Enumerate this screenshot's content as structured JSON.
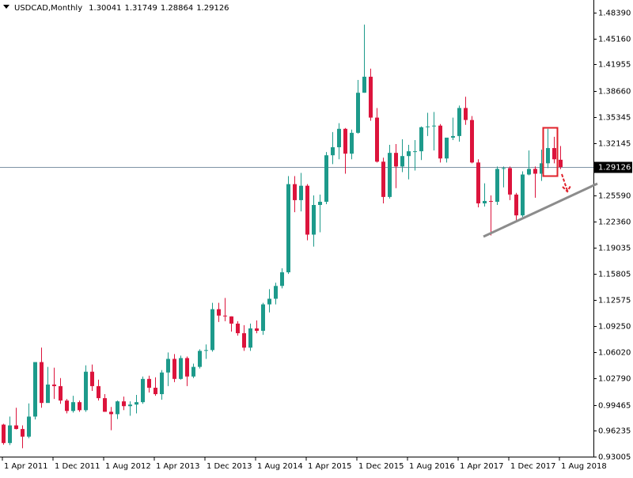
{
  "chart_data": {
    "type": "candlestick",
    "symbol": "USDCAD,Monthly",
    "header_ohlc": [
      1.30041,
      1.31749,
      1.28864,
      1.29126
    ],
    "current_price": 1.29126,
    "up_color": "#1d9a8b",
    "down_color": "#dc143c",
    "ylim": [
      0.93005,
      1.4997
    ],
    "yticks": [
      {
        "value": 1.4839,
        "label": "1.48390"
      },
      {
        "value": 1.4516,
        "label": "1.45160"
      },
      1.41955,
      {
        "value": 1.3866,
        "label": "1.38660"
      },
      1.35345,
      1.32145,
      {
        "value": 1.2559,
        "label": "1.25590"
      },
      {
        "value": 1.2236,
        "label": "1.22360"
      },
      1.19035,
      1.15805,
      1.12575,
      {
        "value": 1.0925,
        "label": "1.09250"
      },
      {
        "value": 1.0602,
        "label": "1.06020"
      },
      {
        "value": 1.0279,
        "label": "1.02790"
      },
      0.99465,
      0.96235,
      0.93005
    ],
    "categories": [
      "1 Apr 2011",
      null,
      null,
      null,
      null,
      null,
      null,
      null,
      "1 Dec 2011",
      null,
      null,
      null,
      null,
      null,
      null,
      null,
      "1 Aug 2012",
      null,
      null,
      null,
      null,
      null,
      null,
      null,
      "1 Apr 2013",
      null,
      null,
      null,
      null,
      null,
      null,
      null,
      "1 Dec 2013",
      null,
      null,
      null,
      null,
      null,
      null,
      null,
      "1 Aug 2014",
      null,
      null,
      null,
      null,
      null,
      null,
      null,
      "1 Apr 2015",
      null,
      null,
      null,
      null,
      null,
      null,
      null,
      "1 Dec 2015",
      null,
      null,
      null,
      null,
      null,
      null,
      null,
      "1 Aug 2016",
      null,
      null,
      null,
      null,
      null,
      null,
      null,
      "1 Apr 2017",
      null,
      null,
      null,
      null,
      null,
      null,
      null,
      "1 Dec 2017",
      null,
      null,
      null,
      null,
      null,
      null,
      null,
      "1 Aug 2018"
    ],
    "open": [
      0.97,
      0.947,
      0.969,
      0.9645,
      0.955,
      0.98,
      1.048,
      0.997,
      1.02,
      1.018,
      1.0,
      0.987,
      0.998,
      0.988,
      1.036,
      1.018,
      1.003,
      0.986,
      0.983,
      0.999,
      0.993,
      0.995,
      0.998,
      1.027,
      1.016,
      1.008,
      1.035,
      1.052,
      1.027,
      1.053,
      1.03,
      1.042,
      1.062,
      1.063,
      1.114,
      1.106,
      1.105,
      1.096,
      1.084,
      1.066,
      1.09,
      1.087,
      1.12,
      1.127,
      1.143,
      1.16,
      1.27,
      1.25,
      1.268,
      1.207,
      1.244,
      1.248,
      1.306,
      1.316,
      1.339,
      1.308,
      1.334,
      1.384,
      1.404,
      1.353,
      1.298,
      1.254,
      1.309,
      1.292,
      1.305,
      1.311,
      1.311,
      1.341,
      1.342,
      1.343,
      1.302,
      1.328,
      1.33,
      1.365,
      1.35,
      1.297,
      1.246,
      1.249,
      1.248,
      1.289,
      1.29,
      1.257,
      1.231,
      1.282,
      1.289,
      1.283,
      1.296,
      1.315,
      1.30041
    ],
    "high": [
      0.971,
      0.98,
      0.991,
      0.969,
      0.9965,
      1.048,
      1.066,
      1.042,
      1.041,
      1.028,
      1.002,
      1.006,
      1.0,
      1.044,
      1.045,
      1.026,
      1.008,
      0.992,
      1.0,
      1.005,
      0.999,
      1.007,
      1.03,
      1.031,
      1.029,
      1.038,
      1.06,
      1.058,
      1.056,
      1.055,
      1.046,
      1.064,
      1.07,
      1.122,
      1.122,
      1.128,
      1.105,
      1.099,
      1.094,
      1.096,
      1.1,
      1.122,
      1.139,
      1.147,
      1.165,
      1.28,
      1.28,
      1.284,
      1.27,
      1.256,
      1.257,
      1.31,
      1.335,
      1.346,
      1.34,
      1.338,
      1.4,
      1.469,
      1.414,
      1.365,
      1.303,
      1.319,
      1.32,
      1.326,
      1.319,
      1.325,
      1.342,
      1.359,
      1.36,
      1.345,
      1.323,
      1.353,
      1.368,
      1.379,
      1.355,
      1.301,
      1.271,
      1.256,
      1.292,
      1.292,
      1.292,
      1.259,
      1.286,
      1.312,
      1.292,
      1.313,
      1.339,
      1.329,
      1.31749
    ],
    "low": [
      0.945,
      0.9445,
      0.964,
      0.9405,
      0.953,
      0.9765,
      0.991,
      0.998,
      1.002,
      0.996,
      0.984,
      0.985,
      0.986,
      0.986,
      1.012,
      1.0,
      0.986,
      0.963,
      0.977,
      0.988,
      0.981,
      0.984,
      0.996,
      1.01,
      1.006,
      1.001,
      1.018,
      1.023,
      1.026,
      1.018,
      1.028,
      1.04,
      1.052,
      1.061,
      1.098,
      1.099,
      1.086,
      1.081,
      1.062,
      1.062,
      1.084,
      1.082,
      1.11,
      1.12,
      1.14,
      1.158,
      1.235,
      1.236,
      1.2,
      1.192,
      1.21,
      1.245,
      1.295,
      1.301,
      1.283,
      1.301,
      1.333,
      1.384,
      1.349,
      1.297,
      1.246,
      1.252,
      1.265,
      1.285,
      1.276,
      1.287,
      1.3,
      1.33,
      1.312,
      1.297,
      1.297,
      1.325,
      1.323,
      1.344,
      1.296,
      1.241,
      1.242,
      1.206,
      1.244,
      1.266,
      1.25,
      1.225,
      1.229,
      1.281,
      1.253,
      1.274,
      1.29,
      1.296,
      1.28864
    ],
    "close": [
      0.947,
      0.969,
      0.9645,
      0.955,
      0.98,
      1.048,
      0.997,
      1.02,
      1.018,
      1.0,
      0.987,
      0.998,
      0.988,
      1.036,
      1.018,
      1.003,
      0.986,
      0.983,
      0.999,
      0.993,
      0.995,
      0.998,
      1.027,
      1.016,
      1.008,
      1.035,
      1.052,
      1.027,
      1.053,
      1.03,
      1.042,
      1.062,
      1.063,
      1.114,
      1.106,
      1.105,
      1.096,
      1.084,
      1.066,
      1.09,
      1.087,
      1.12,
      1.127,
      1.143,
      1.16,
      1.27,
      1.25,
      1.268,
      1.207,
      1.244,
      1.248,
      1.306,
      1.316,
      1.339,
      1.308,
      1.334,
      1.384,
      1.404,
      1.353,
      1.298,
      1.254,
      1.309,
      1.292,
      1.305,
      1.311,
      1.311,
      1.341,
      1.342,
      1.343,
      1.302,
      1.328,
      1.33,
      1.365,
      1.35,
      1.297,
      1.246,
      1.249,
      1.248,
      1.289,
      1.29,
      1.257,
      1.231,
      1.282,
      1.289,
      1.283,
      1.296,
      1.315,
      1.301,
      1.29126
    ]
  }
}
